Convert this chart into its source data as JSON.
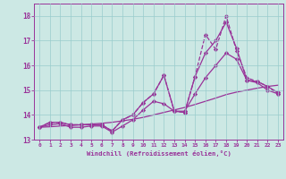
{
  "bg_color": "#cce8e4",
  "line_color": "#993399",
  "grid_color": "#99cccc",
  "xlabel": "Windchill (Refroidissement éolien,°C)",
  "xlim": [
    -0.5,
    23.5
  ],
  "ylim": [
    13.0,
    18.5
  ],
  "yticks": [
    13,
    14,
    15,
    16,
    17,
    18
  ],
  "xticks": [
    0,
    1,
    2,
    3,
    4,
    5,
    6,
    7,
    8,
    9,
    10,
    11,
    12,
    13,
    14,
    15,
    16,
    17,
    18,
    19,
    20,
    21,
    22,
    23
  ],
  "lines": [
    {
      "x": [
        0,
        1,
        2,
        3,
        4,
        5,
        6,
        7,
        8,
        9,
        10,
        11,
        12,
        13,
        14,
        15,
        16,
        17,
        18,
        19,
        20,
        21,
        22,
        23
      ],
      "y": [
        13.5,
        13.7,
        13.7,
        13.6,
        13.6,
        13.6,
        13.6,
        13.35,
        13.8,
        14.0,
        14.5,
        14.85,
        15.6,
        14.15,
        14.1,
        15.55,
        17.25,
        16.65,
        18.0,
        16.6,
        15.5,
        15.35,
        15.15,
        14.85
      ],
      "style": "--",
      "marker": "D",
      "markersize": 2.2
    },
    {
      "x": [
        0,
        1,
        2,
        3,
        4,
        5,
        6,
        7,
        8,
        9,
        10,
        11,
        12,
        13,
        14,
        15,
        16,
        17,
        18,
        19,
        20,
        21,
        22,
        23
      ],
      "y": [
        13.5,
        13.7,
        13.7,
        13.6,
        13.6,
        13.6,
        13.6,
        13.35,
        13.8,
        14.0,
        14.5,
        14.85,
        15.6,
        14.15,
        14.1,
        15.55,
        16.5,
        17.0,
        17.75,
        16.7,
        15.4,
        15.3,
        15.0,
        14.85
      ],
      "style": "-",
      "marker": "D",
      "markersize": 2.2
    },
    {
      "x": [
        0,
        1,
        2,
        3,
        4,
        5,
        6,
        7,
        8,
        9,
        10,
        11,
        12,
        13,
        14,
        15,
        16,
        17,
        18,
        19,
        20,
        21,
        22,
        23
      ],
      "y": [
        13.5,
        13.6,
        13.65,
        13.5,
        13.5,
        13.55,
        13.55,
        13.3,
        13.55,
        13.8,
        14.2,
        14.55,
        14.45,
        14.15,
        14.15,
        14.85,
        15.5,
        16.0,
        16.5,
        16.25,
        15.4,
        15.35,
        15.15,
        14.9
      ],
      "style": "-",
      "marker": "D",
      "markersize": 2.2
    },
    {
      "x": [
        0,
        1,
        2,
        3,
        4,
        5,
        6,
        7,
        8,
        9,
        10,
        11,
        12,
        13,
        14,
        15,
        16,
        17,
        18,
        19,
        20,
        21,
        22,
        23
      ],
      "y": [
        13.5,
        13.52,
        13.55,
        13.57,
        13.6,
        13.63,
        13.66,
        13.7,
        13.76,
        13.82,
        13.9,
        14.0,
        14.1,
        14.2,
        14.3,
        14.42,
        14.55,
        14.68,
        14.82,
        14.92,
        15.0,
        15.08,
        15.15,
        15.2
      ],
      "style": "-",
      "marker": null,
      "markersize": 0
    }
  ]
}
